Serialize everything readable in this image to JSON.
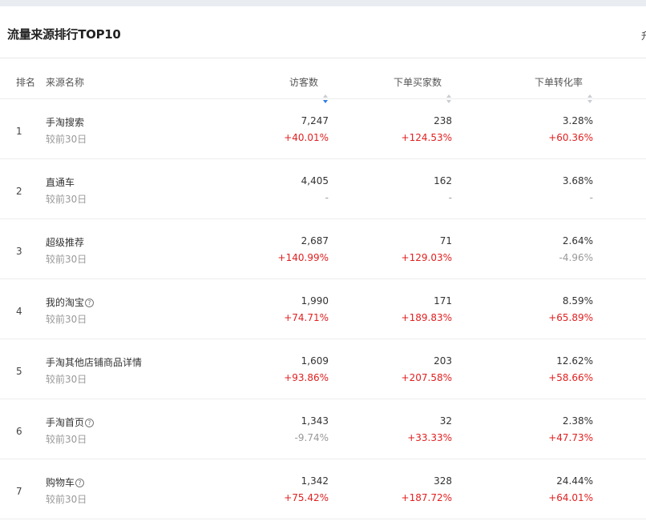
{
  "panel": {
    "title": "流量来源排行TOP10",
    "right_text": "升"
  },
  "table": {
    "columns": {
      "rank": "排名",
      "name": "来源名称",
      "visitors": "访客数",
      "buyers": "下单买家数",
      "conversion": "下单转化率"
    },
    "compare_label": "较前30日",
    "rows": [
      {
        "rank": "1",
        "name": "手淘搜索",
        "help": false,
        "visitors": "7,247",
        "visitors_chg": "+40.01%",
        "buyers": "238",
        "buyers_chg": "+124.53%",
        "conversion": "3.28%",
        "conversion_chg": "+60.36%"
      },
      {
        "rank": "2",
        "name": "直通车",
        "help": false,
        "visitors": "4,405",
        "visitors_chg": "-",
        "buyers": "162",
        "buyers_chg": "-",
        "conversion": "3.68%",
        "conversion_chg": "-"
      },
      {
        "rank": "3",
        "name": "超级推荐",
        "help": false,
        "visitors": "2,687",
        "visitors_chg": "+140.99%",
        "buyers": "71",
        "buyers_chg": "+129.03%",
        "conversion": "2.64%",
        "conversion_chg": "-4.96%"
      },
      {
        "rank": "4",
        "name": "我的淘宝",
        "help": true,
        "visitors": "1,990",
        "visitors_chg": "+74.71%",
        "buyers": "171",
        "buyers_chg": "+189.83%",
        "conversion": "8.59%",
        "conversion_chg": "+65.89%"
      },
      {
        "rank": "5",
        "name": "手淘其他店铺商品详情",
        "help": false,
        "visitors": "1,609",
        "visitors_chg": "+93.86%",
        "buyers": "203",
        "buyers_chg": "+207.58%",
        "conversion": "12.62%",
        "conversion_chg": "+58.66%"
      },
      {
        "rank": "6",
        "name": "手淘首页",
        "help": true,
        "visitors": "1,343",
        "visitors_chg": "-9.74%",
        "buyers": "32",
        "buyers_chg": "+33.33%",
        "conversion": "2.38%",
        "conversion_chg": "+47.73%"
      },
      {
        "rank": "7",
        "name": "购物车",
        "help": true,
        "visitors": "1,342",
        "visitors_chg": "+75.42%",
        "buyers": "328",
        "buyers_chg": "+187.72%",
        "conversion": "24.44%",
        "conversion_chg": "+64.01%"
      }
    ]
  },
  "colors": {
    "increase": "#e02020",
    "neutral": "#999999",
    "sort_active": "#2f7de1"
  },
  "icons": {
    "help": "question-circle-icon",
    "sort": "sort-caret-icon"
  }
}
